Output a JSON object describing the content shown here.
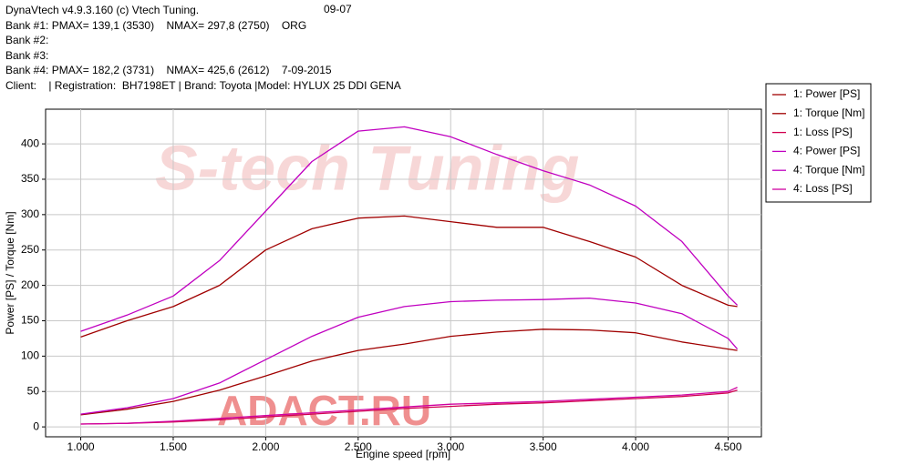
{
  "header": {
    "lines": [
      "DynaVtech v4.9.3.160 (c) Vtech Tuning.",
      "Bank #1: PMAX= 139,1 (3530)    NMAX= 297,8 (2750)    ORG",
      "Bank #2:",
      "Bank #3:",
      "Bank #4: PMAX= 182,2 (3731)    NMAX= 425,6 (2612)    7-09-2015",
      "Client:    | Registration:  BH7198ET | Brand: Toyota |Model: HYLUX 25 DDI GENA"
    ],
    "date": "09-07"
  },
  "chart_data": {
    "type": "line",
    "watermarks": [
      "S-tech Tuning",
      "ADACT.RU"
    ],
    "xlabel": "Engine speed [rpm]",
    "ylabel": "Power [PS] / Torque [Nm]",
    "x": [
      1000,
      1250,
      1500,
      1750,
      2000,
      2250,
      2500,
      2750,
      3000,
      3250,
      3500,
      3750,
      4000,
      4250,
      4500,
      4550
    ],
    "xlim": [
      810,
      4680
    ],
    "xticks": [
      {
        "value": 1000,
        "label": "1.000"
      },
      {
        "value": 1500,
        "label": "1.500"
      },
      {
        "value": 2000,
        "label": "2.000"
      },
      {
        "value": 2500,
        "label": "2.500"
      },
      {
        "value": 3000,
        "label": "3.000"
      },
      {
        "value": 3500,
        "label": "3.500"
      },
      {
        "value": 4000,
        "label": "4.000"
      },
      {
        "value": 4500,
        "label": "4.500"
      }
    ],
    "ylim": [
      -14,
      449
    ],
    "yticks": [
      0,
      50,
      100,
      150,
      200,
      250,
      300,
      350,
      400
    ],
    "grid": true,
    "legend": "right",
    "series": [
      {
        "name": "1: Power [PS]",
        "color": "#a00000",
        "values": [
          17,
          25,
          36,
          52,
          72,
          93,
          108,
          117,
          128,
          134,
          138,
          137,
          133,
          120,
          110,
          108
        ]
      },
      {
        "name": "1: Torque [Nm]",
        "color": "#a00000",
        "values": [
          127,
          150,
          170,
          200,
          250,
          280,
          295,
          298,
          290,
          282,
          282,
          262,
          240,
          200,
          172,
          170
        ]
      },
      {
        "name": "1: Loss [PS]",
        "color": "#d00050",
        "values": [
          4,
          5,
          7,
          10,
          14,
          18,
          22,
          26,
          29,
          32,
          34,
          37,
          40,
          43,
          48,
          52
        ]
      },
      {
        "name": "4: Power [PS]",
        "color": "#c000c0",
        "values": [
          18,
          27,
          40,
          62,
          95,
          128,
          155,
          170,
          177,
          179,
          180,
          182,
          175,
          160,
          125,
          110
        ]
      },
      {
        "name": "4: Torque [Nm]",
        "color": "#c000c0",
        "values": [
          135,
          158,
          185,
          235,
          305,
          375,
          418,
          424,
          410,
          385,
          362,
          342,
          312,
          262,
          185,
          172
        ]
      },
      {
        "name": "4: Loss [PS]",
        "color": "#d000a0",
        "values": [
          4,
          5,
          8,
          12,
          16,
          20,
          24,
          28,
          32,
          34,
          36,
          39,
          42,
          45,
          50,
          56
        ]
      }
    ]
  }
}
